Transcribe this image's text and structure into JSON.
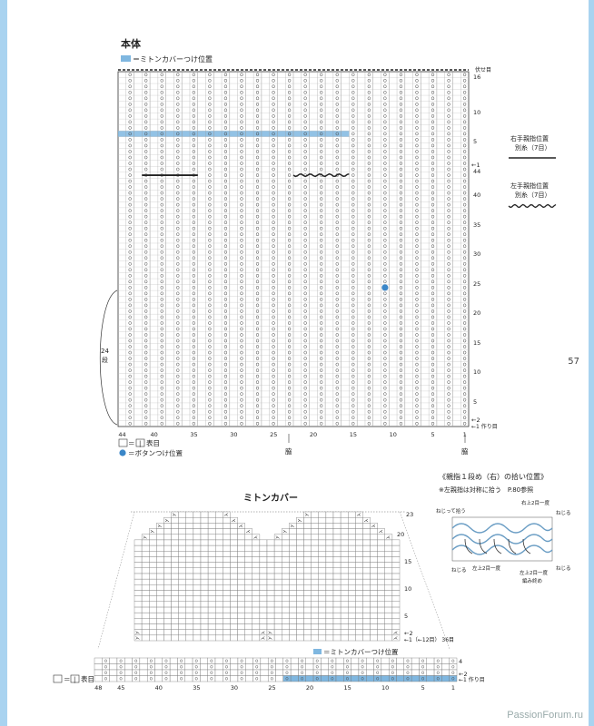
{
  "main_title": "本体",
  "legend_top": "＝ミトンカバーつけ位置",
  "bind_off": "伏せ目",
  "right_labels": {
    "top": "16",
    "r10": "10",
    "r5": "5",
    "minus1": "←1",
    "r44": "44",
    "r40": "40",
    "r35": "35",
    "r30": "30",
    "r25": "25",
    "r20": "20",
    "r15": "15",
    "r10b": "10",
    "r5b": "5",
    "minus2": "←2",
    "cast_on": "←1 作り目"
  },
  "bottom_numbers": [
    "44",
    "40",
    "35",
    "30",
    "25",
    "20",
    "15",
    "10",
    "5",
    "1"
  ],
  "side_label": {
    "num": "24",
    "unit": "段"
  },
  "waki": "脇",
  "key1": "＝",
  "key1_symbol": "|",
  "key1_text": "表目",
  "key2": "＝ボタンつけ位置",
  "right_thumb": {
    "title": "右手親指位置",
    "sub": "別糸（7目）"
  },
  "left_thumb": {
    "title": "左手親指位置",
    "sub": "別糸（7目）"
  },
  "page_number": "57",
  "cover_title": "ミトンカバー",
  "cover_right": {
    "r23": "23",
    "r20": "20",
    "r15": "15",
    "r10": "10",
    "r5": "5",
    "m2": "←2",
    "m1": "←1（←12目） 36目"
  },
  "cover_rib_legend": "＝ミトンカバーつけ位置",
  "cover_rib_right": {
    "r4": "4",
    "m2": "←2",
    "m1": "←1 作り目"
  },
  "cover_bottom_numbers": [
    "48",
    "45",
    "40",
    "35",
    "30",
    "25",
    "20",
    "15",
    "10",
    "5",
    "1"
  ],
  "cover_key": "＝",
  "cover_key_symbol": "|",
  "cover_key_text": "表目",
  "thumb_pick": {
    "title": "《親指１段め（右）の拾い位置》",
    "note": "※左親指は対称に拾う　P.80参照",
    "labels": {
      "twist_pick": "ねじって拾う",
      "right2": "右上2目一度",
      "twist_r": "ねじる",
      "twist_l": "ねじる",
      "left2": "左上2目一度",
      "twist_r2": "ねじる",
      "left2b": "左上2目一度",
      "cast": "編み終め"
    }
  },
  "watermark": "PassionForum.ru",
  "colors": {
    "accent": "#7fb7e0",
    "button": "#3a86c8",
    "frame": "#a9d3f0"
  }
}
